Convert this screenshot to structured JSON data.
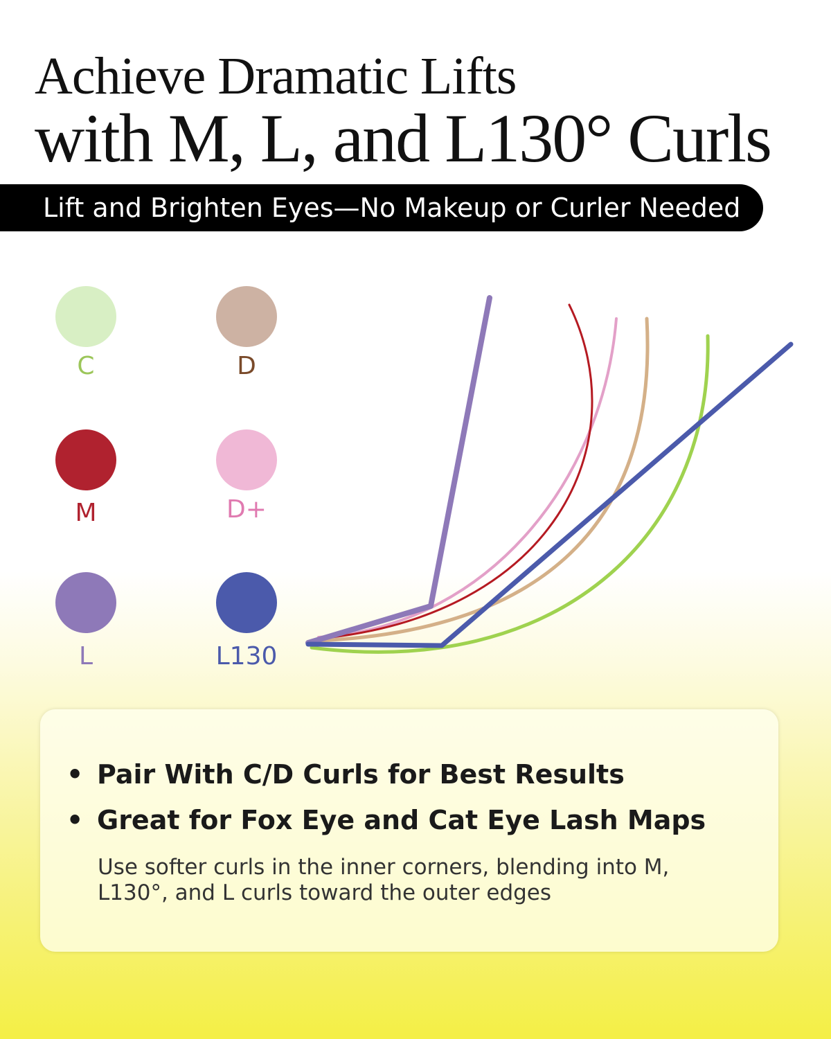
{
  "heading": {
    "line1": "Achieve Dramatic Lifts",
    "line2": "with M, L, and L130° Curls"
  },
  "banner": "Lift and Brighten Eyes—No Makeup or Curler Needed",
  "curls": [
    {
      "label": "C",
      "color": "#d8efc4",
      "text_color": "#9cc65a",
      "line_color": "#9fd24f"
    },
    {
      "label": "D",
      "color": "#cdb2a3",
      "text_color": "#7a4a2a",
      "line_color": "#d4b088"
    },
    {
      "label": "M",
      "color": "#b0222f",
      "text_color": "#b0222f",
      "line_color": "#b51a22"
    },
    {
      "label": "D+",
      "color": "#f0b8d6",
      "text_color": "#e07ab0",
      "line_color": "#e3a0c8"
    },
    {
      "label": "L",
      "color": "#8e79b8",
      "text_color": "#8e79b8",
      "line_color": "#8e79b8"
    },
    {
      "label": "L130",
      "color": "#4b5aab",
      "text_color": "#4b5aab",
      "line_color": "#4b5aab"
    }
  ],
  "card": {
    "bullets": [
      "Pair With C/D Curls for Best Results",
      "Great for Fox Eye and Cat Eye Lash Maps"
    ],
    "bullet_symbol": "•",
    "note": "Use softer curls in the inner corners, blending into M, L130°, and L curls toward the outer edges"
  }
}
